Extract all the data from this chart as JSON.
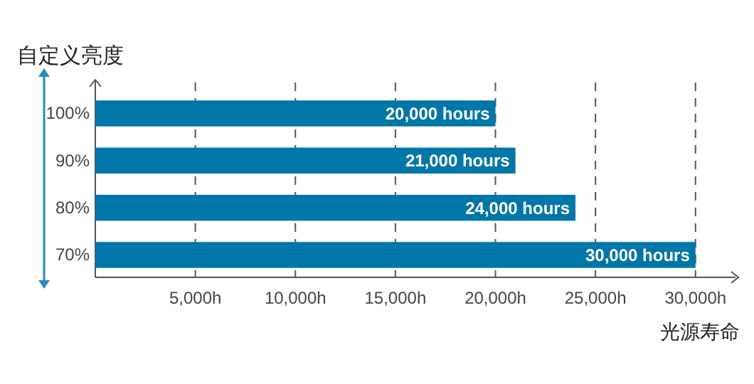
{
  "chart_data": {
    "type": "bar",
    "orientation": "horizontal",
    "title": "自定义亮度",
    "xlabel": "光源寿命",
    "categories": [
      "100%",
      "90%",
      "80%",
      "70%"
    ],
    "values": [
      20000,
      21000,
      24000,
      30000
    ],
    "color": "#0077a8",
    "value_labels": [
      "20,000 hours",
      "21,000 hours",
      "24,000 hours",
      "30,000 hours"
    ],
    "xlim": [
      0,
      32000
    ],
    "xticks": [
      {
        "value": 5000,
        "label": "5,000h"
      },
      {
        "value": 10000,
        "label": "10,000h"
      },
      {
        "value": 15000,
        "label": "15,000h"
      },
      {
        "value": 20000,
        "label": "20,000h"
      },
      {
        "value": 25000,
        "label": "25,000h"
      },
      {
        "value": 30000,
        "label": "30,000h"
      }
    ],
    "grid": "x"
  }
}
